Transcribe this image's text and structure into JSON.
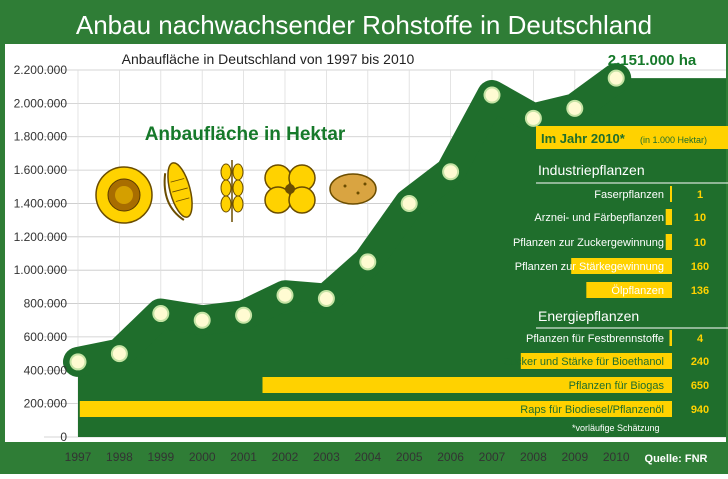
{
  "header": {
    "title": "Anbau nachwachsender Rohstoffe in Deutschland",
    "subtitle": "Anbaufläche in Deutschland von 1997 bis 2010",
    "callout": "2.151.000 ha",
    "area_label": "Anbaufläche in Hektar",
    "source": "Quelle: FNR"
  },
  "colors": {
    "frame_green": "#2f7d36",
    "area_green": "#1f6e2c",
    "light_green": "#c5e3a4",
    "marker_fill": "#fffbd2",
    "bar_yellow": "#ffd200",
    "title_yellow": "#fff200",
    "label_green": "#16792a"
  },
  "icons": [
    "sunflower-icon",
    "corn-icon",
    "wheat-icon",
    "rapeseed-flower-icon",
    "potato-icon"
  ],
  "chart_data": {
    "type": "area",
    "x": [
      "1997",
      "1998",
      "1999",
      "2000",
      "2001",
      "2002",
      "2003",
      "2004",
      "2005",
      "2006",
      "2007",
      "2008",
      "2009",
      "2010"
    ],
    "values": [
      450000,
      500000,
      740000,
      700000,
      730000,
      850000,
      830000,
      1050000,
      1400000,
      1590000,
      2050000,
      1910000,
      1970000,
      2151000
    ],
    "ylim": [
      0,
      2200000
    ],
    "yticks": [
      "0",
      "200.000",
      "400.000",
      "600.000",
      "800.000",
      "1.000.000",
      "1.200.000",
      "1.400.000",
      "1.600.000",
      "1.800.000",
      "2.000.000",
      "2.200.000"
    ],
    "grid": true
  },
  "breakdown": {
    "heading": "Im Jahr 2010*",
    "heading_unit": "(in 1.000 Hektar)",
    "footnote": "*vorläufige Schätzung",
    "industrie_title": "Industriepflanzen",
    "energie_title": "Energiepflanzen",
    "industrie": [
      {
        "label": "Faserpflanzen",
        "value": 1
      },
      {
        "label": "Arznei- und Färbepflanzen",
        "value": 10
      },
      {
        "label": "Pflanzen zur Zuckergewinnung",
        "value": 10
      },
      {
        "label": "Pflanzen zur Stärkegewinnung",
        "value": 160
      },
      {
        "label": "Ölpflanzen",
        "value": 136
      }
    ],
    "energie": [
      {
        "label": "Pflanzen für Festbrennstoffe",
        "value": 4
      },
      {
        "label": "Zucker und Stärke für Bioethanol",
        "value": 240
      },
      {
        "label": "Pflanzen für Biogas",
        "value": 650
      },
      {
        "label": "Raps für Biodiesel/Pflanzenöl",
        "value": 940
      }
    ]
  }
}
